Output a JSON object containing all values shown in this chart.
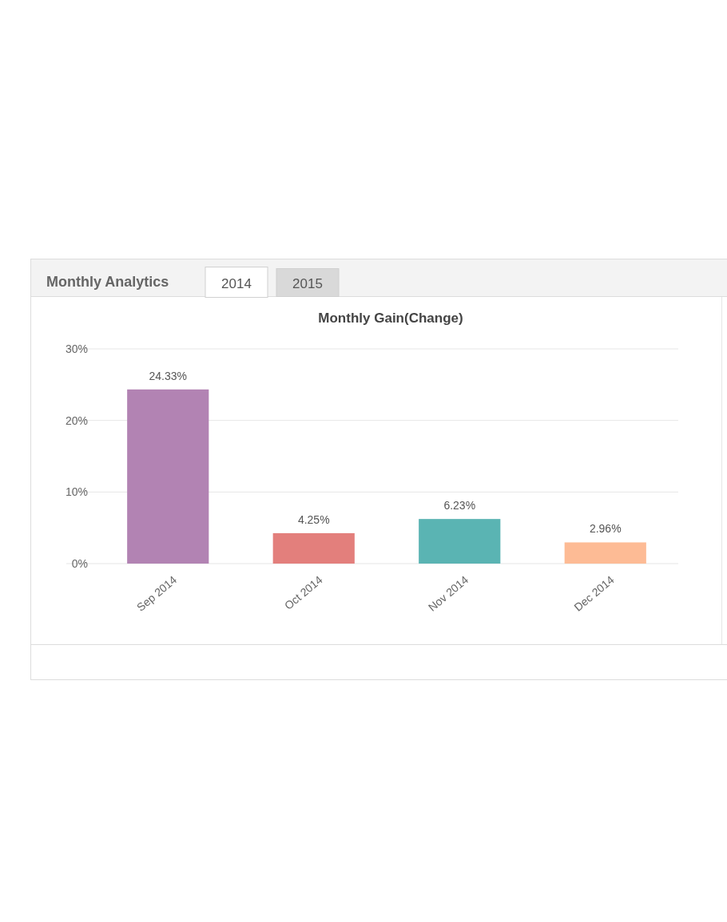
{
  "chart_data": {
    "type": "bar",
    "title": "Monthly Gain(Change)",
    "annotations": [
      "Monthly Analytics",
      "2014",
      "2015"
    ],
    "categories": [
      "Sep 2014",
      "Oct 2014",
      "Nov 2014",
      "Dec 2014"
    ],
    "values": [
      24.33,
      4.25,
      6.23,
      2.96
    ],
    "colors": [
      "#b283b3",
      "#e37f7c",
      "#5ab4b3",
      "#fdbb95"
    ],
    "value_labels": [
      "24.33%",
      "4.25%",
      "6.23%",
      "2.96%"
    ],
    "ylim": [
      0,
      30
    ],
    "yticks": [
      {
        "value": 0,
        "label": "0%"
      },
      {
        "value": 10,
        "label": "10%"
      },
      {
        "value": 20,
        "label": "20%"
      },
      {
        "value": 30,
        "label": "30%"
      }
    ],
    "grid": "y"
  }
}
